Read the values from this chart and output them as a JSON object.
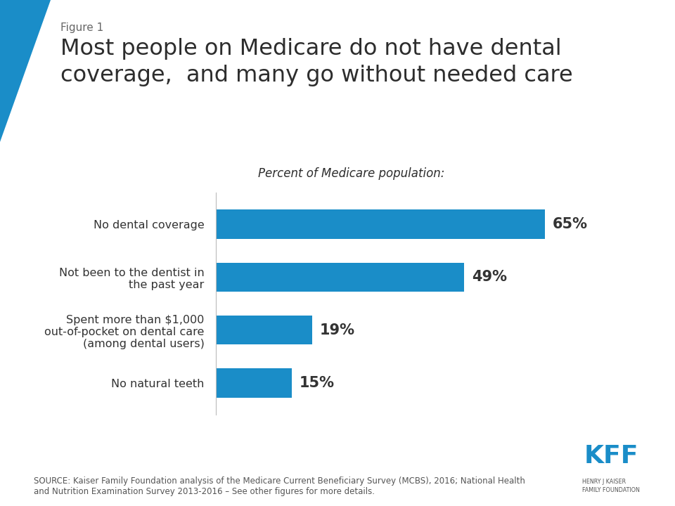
{
  "figure_label": "Figure 1",
  "title_line1": "Most people on Medicare do not have dental",
  "title_line2": "coverage,  and many go without needed care",
  "subtitle": "Percent of Medicare population:",
  "categories": [
    "No dental coverage",
    "Not been to the dentist in\nthe past year",
    "Spent more than $1,000\nout-of-pocket on dental care\n(among dental users)",
    "No natural teeth"
  ],
  "values": [
    65,
    49,
    19,
    15
  ],
  "labels": [
    "65%",
    "49%",
    "19%",
    "15%"
  ],
  "bar_color": "#1a8dc8",
  "background_color": "#ffffff",
  "title_color": "#2d2d2d",
  "figure_label_color": "#666666",
  "label_color": "#333333",
  "source_text": "SOURCE: Kaiser Family Foundation analysis of the Medicare Current Beneficiary Survey (MCBS), 2016; National Health\nand Nutrition Examination Survey 2013-2016 – See other figures for more details.",
  "xlim": [
    0,
    80
  ],
  "bar_height": 0.55,
  "figsize": [
    9.6,
    7.2
  ],
  "dpi": 100
}
